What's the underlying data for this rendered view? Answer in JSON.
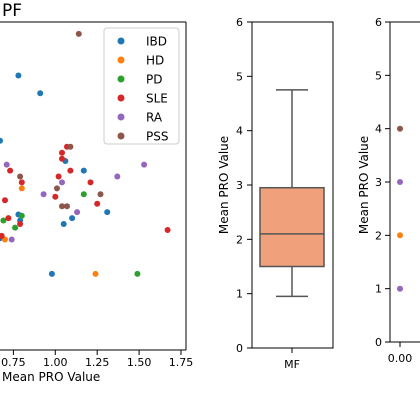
{
  "chart_data": [
    {
      "type": "scatter",
      "title": "PF",
      "xlabel": "Mean PRO Value",
      "ylabel": "",
      "x_ticks": [
        "0.75",
        "1.00",
        "1.25",
        "1.50",
        "1.75"
      ],
      "xlim": [
        0.67,
        1.78
      ],
      "ylim": [
        0.79,
        3.55
      ],
      "legend": {
        "position": "top-right"
      },
      "colors": {
        "IBD": "#1f77b4",
        "HD": "#ff7f0e",
        "PD": "#2ca02c",
        "SLE": "#d62728",
        "RA": "#9467bd",
        "PSS": "#8c564b"
      },
      "series": [
        {
          "name": "IBD",
          "points": [
            [
              0.67,
              2.55
            ],
            [
              0.78,
              3.1
            ],
            [
              0.91,
              2.95
            ],
            [
              1.06,
              2.38
            ],
            [
              1.17,
              2.3
            ],
            [
              1.31,
              1.95
            ],
            [
              1.56,
              2.55
            ],
            [
              0.78,
              1.93
            ],
            [
              0.79,
              1.88
            ],
            [
              0.98,
              1.43
            ],
            [
              0.67,
              1.73
            ],
            [
              1.1,
              1.9
            ],
            [
              1.05,
              1.85
            ]
          ]
        },
        {
          "name": "HD",
          "points": [
            [
              0.8,
              2.15
            ],
            [
              1.24,
              1.43
            ],
            [
              0.7,
              1.72
            ]
          ]
        },
        {
          "name": "PD",
          "points": [
            [
              0.69,
              1.88
            ],
            [
              1.17,
              2.1
            ],
            [
              1.49,
              1.43
            ],
            [
              0.76,
              1.82
            ],
            [
              0.8,
              1.92
            ]
          ]
        },
        {
          "name": "SLE",
          "points": [
            [
              0.7,
              2.05
            ],
            [
              0.73,
              2.3
            ],
            [
              1.04,
              2.4
            ],
            [
              1.07,
              2.5
            ],
            [
              1.09,
              2.3
            ],
            [
              1.02,
              2.25
            ],
            [
              1.04,
              2.45
            ],
            [
              1.21,
              2.2
            ],
            [
              1.25,
              2.02
            ],
            [
              1.0,
              2.08
            ],
            [
              1.67,
              1.8
            ],
            [
              0.8,
              2.2
            ],
            [
              0.79,
              1.85
            ],
            [
              0.72,
              1.9
            ],
            [
              0.68,
              1.75
            ]
          ]
        },
        {
          "name": "RA",
          "points": [
            [
              0.71,
              2.35
            ],
            [
              0.93,
              2.1
            ],
            [
              1.04,
              2.2
            ],
            [
              1.37,
              2.25
            ],
            [
              1.53,
              2.35
            ],
            [
              0.74,
              1.72
            ],
            [
              1.13,
              1.95
            ]
          ]
        },
        {
          "name": "PSS",
          "points": [
            [
              1.14,
              3.45
            ],
            [
              1.09,
              2.5
            ],
            [
              0.79,
              2.25
            ],
            [
              1.01,
              2.15
            ],
            [
              1.27,
              2.1
            ],
            [
              1.07,
              2.0
            ],
            [
              1.04,
              2.0
            ]
          ]
        }
      ]
    },
    {
      "type": "box",
      "title": "",
      "xlabel": "",
      "ylabel": "Mean PRO Value",
      "categories": [
        "MF"
      ],
      "ylim": [
        0,
        6
      ],
      "y_ticks": [
        "0",
        "1",
        "2",
        "3",
        "4",
        "5",
        "6"
      ],
      "color": "#f0a07a",
      "stats": {
        "whisker_low": 0.95,
        "q1": 1.5,
        "median": 2.1,
        "q3": 2.95,
        "whisker_high": 4.75
      }
    },
    {
      "type": "scatter",
      "title": "",
      "xlabel": "",
      "ylabel": "Mean PRO Value",
      "x_ticks": [
        "0.00"
      ],
      "ylim": [
        0,
        6
      ],
      "y_ticks": [
        "0",
        "1",
        "2",
        "3",
        "4",
        "5",
        "6"
      ],
      "series": [
        {
          "name": "",
          "color": "#8c564b",
          "points": [
            [
              0,
              4
            ]
          ]
        },
        {
          "name": "",
          "color": "#9467bd",
          "points": [
            [
              0,
              3
            ]
          ]
        },
        {
          "name": "",
          "color": "#ff7f0e",
          "points": [
            [
              0,
              2
            ]
          ]
        },
        {
          "name": "",
          "color": "#9467bd",
          "points": [
            [
              0,
              1
            ]
          ]
        }
      ]
    }
  ]
}
